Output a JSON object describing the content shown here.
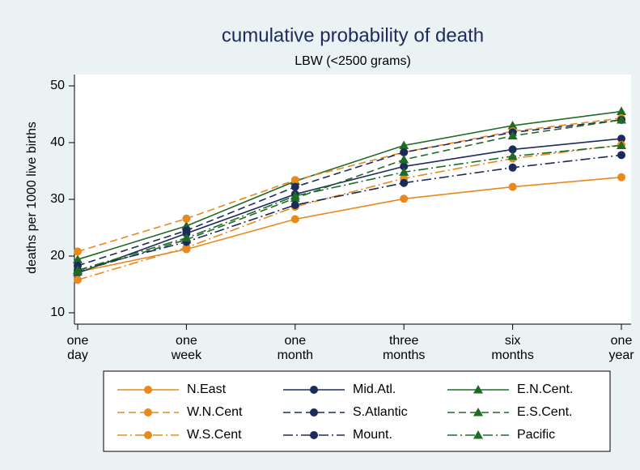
{
  "chart_data": {
    "type": "line",
    "title": "cumulative probability of death",
    "subtitle": "LBW (<2500 grams)",
    "y_label": "deaths per 1000 live births",
    "categories": [
      [
        "one",
        "day"
      ],
      [
        "one",
        "week"
      ],
      [
        "one",
        "month"
      ],
      [
        "three",
        "months"
      ],
      [
        "six",
        "months"
      ],
      [
        "one",
        "year"
      ]
    ],
    "ylim": [
      8,
      52
    ],
    "yticks": [
      10,
      20,
      30,
      40,
      50
    ],
    "grid": false,
    "legend": "bottom",
    "series": [
      {
        "name": "N.East",
        "color": "#e8891c",
        "dash": "solid",
        "marker": "circle",
        "values": [
          17.2,
          21.2,
          26.5,
          30.1,
          32.2,
          33.9
        ]
      },
      {
        "name": "Mid.Atl.",
        "color": "#1c2b5c",
        "dash": "solid",
        "marker": "circle",
        "values": [
          17.0,
          24.0,
          30.9,
          35.8,
          38.8,
          40.7
        ]
      },
      {
        "name": "E.N.Cent.",
        "color": "#1e6b24",
        "dash": "solid",
        "marker": "triangle",
        "values": [
          19.4,
          25.3,
          33.2,
          39.5,
          43.0,
          45.5
        ]
      },
      {
        "name": "W.N.Cent",
        "color": "#e8891c",
        "dash": "dash",
        "marker": "circle",
        "values": [
          20.8,
          26.6,
          33.4,
          38.3,
          42.0,
          44.3
        ]
      },
      {
        "name": "S.Atlantic",
        "color": "#1c2b5c",
        "dash": "dash",
        "marker": "circle",
        "values": [
          18.3,
          24.5,
          32.2,
          38.3,
          41.8,
          44.0
        ]
      },
      {
        "name": "E.S.Cent.",
        "color": "#1e6b24",
        "dash": "dash",
        "marker": "triangle",
        "values": [
          17.2,
          22.9,
          30.2,
          37.0,
          41.2,
          44.0
        ]
      },
      {
        "name": "W.S.Cent",
        "color": "#e8891c",
        "dash": "dashdot",
        "marker": "circle",
        "values": [
          15.8,
          21.5,
          28.7,
          33.7,
          37.2,
          39.6
        ]
      },
      {
        "name": "Mount.",
        "color": "#1c2b5c",
        "dash": "dashdot",
        "marker": "circle",
        "values": [
          17.5,
          22.5,
          29.0,
          32.9,
          35.6,
          37.8
        ]
      },
      {
        "name": "Pacific",
        "color": "#1e6b24",
        "dash": "dashdot",
        "marker": "triangle",
        "values": [
          17.5,
          23.2,
          30.6,
          34.8,
          37.6,
          39.5
        ]
      }
    ]
  }
}
